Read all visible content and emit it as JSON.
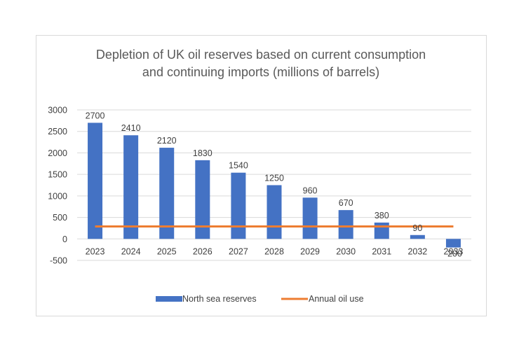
{
  "chart_data": {
    "type": "bar",
    "title_lines": [
      "Depletion of UK oil reserves based on current consumption",
      "and continuing imports (millions of barrels)"
    ],
    "categories": [
      "2023",
      "2024",
      "2025",
      "2026",
      "2027",
      "2028",
      "2029",
      "2030",
      "2031",
      "2032",
      "2033"
    ],
    "series": [
      {
        "name": "North sea reserves",
        "kind": "bar",
        "color": "#4472c4",
        "values": [
          2700,
          2410,
          2120,
          1830,
          1540,
          1250,
          960,
          670,
          380,
          90,
          -200
        ],
        "data_labels": [
          "2700",
          "2410",
          "2120",
          "1830",
          "1540",
          "1250",
          "960",
          "670",
          "380",
          "90",
          "-200"
        ]
      },
      {
        "name": "Annual oil use",
        "kind": "line",
        "color": "#ed7d31",
        "values": [
          290,
          290,
          290,
          290,
          290,
          290,
          290,
          290,
          290,
          290,
          290
        ]
      }
    ],
    "ylim": [
      -500,
      3000
    ],
    "yticks": [
      3000,
      2500,
      2000,
      1500,
      1000,
      500,
      0,
      -500
    ],
    "ytick_labels": [
      "3000",
      "2500",
      "2000",
      "1500",
      "1000",
      "500",
      "0",
      "-500"
    ],
    "grid": true,
    "grid_color": "#d9d9d9",
    "legend": "bottom"
  }
}
